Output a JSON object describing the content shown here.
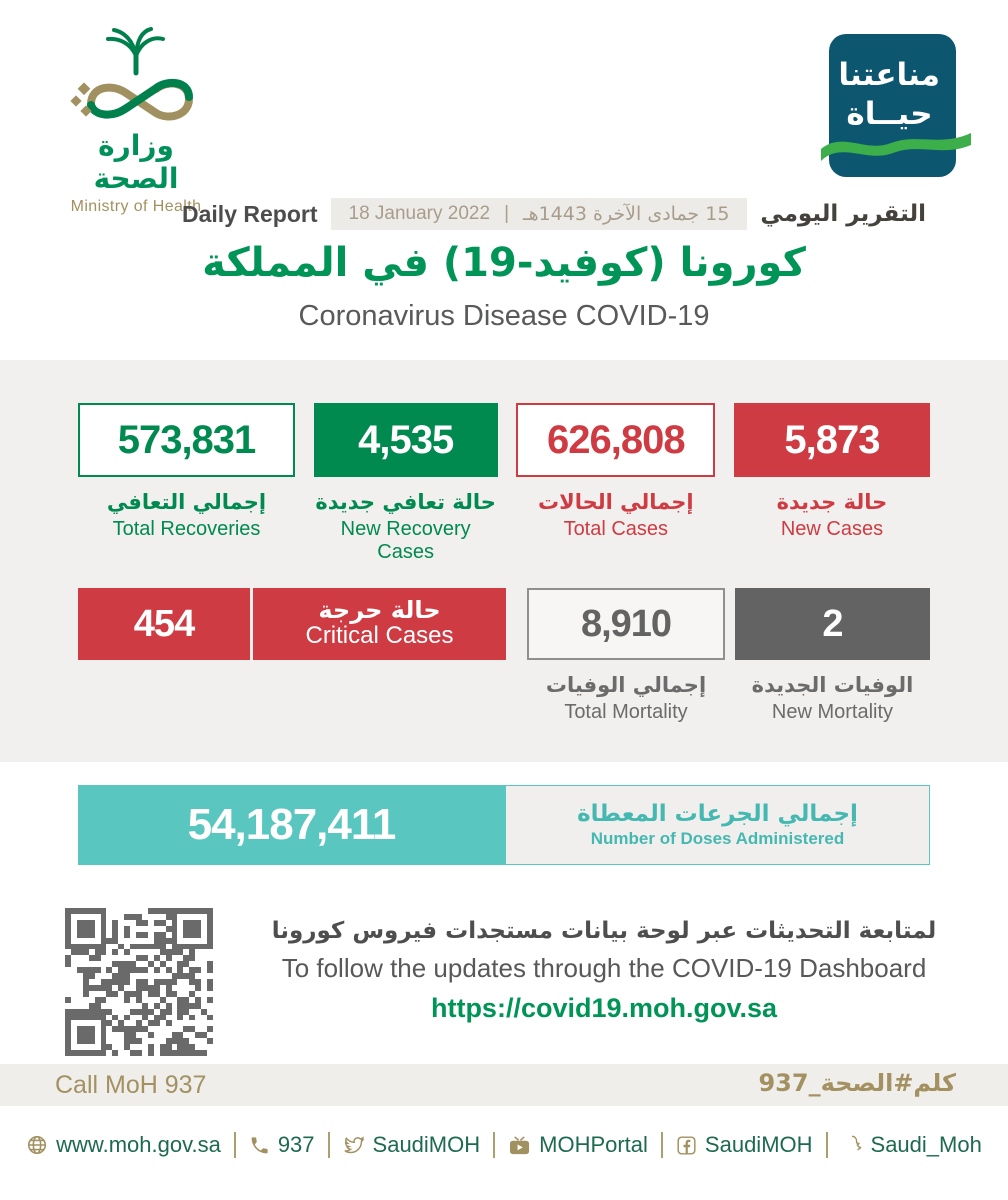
{
  "logo": {
    "arabic": "وزارة الصحة",
    "english": "Ministry of Health"
  },
  "badge": {
    "line1": "مناعتنا",
    "line2": "حيــاة"
  },
  "report_header": {
    "daily_report_en": "Daily Report",
    "date_gregorian": "18 January 2022",
    "separator": "|",
    "date_hijri": "15 جمادى الآخرة 1443هـ",
    "daily_report_ar": "التقرير اليومي"
  },
  "title": {
    "ar": "كورونا  (كوفيد-19) في المملكة",
    "en": "Coronavirus Disease COVID-19"
  },
  "stats": {
    "total_recoveries": {
      "value": "573,831",
      "label_ar": "إجمالي التعافي",
      "label_en": "Total Recoveries"
    },
    "new_recoveries": {
      "value": "4,535",
      "label_ar": "حالة تعافي جديدة",
      "label_en": "New Recovery Cases"
    },
    "total_cases": {
      "value": "626,808",
      "label_ar": "إجمالي الحالات",
      "label_en": "Total Cases"
    },
    "new_cases": {
      "value": "5,873",
      "label_ar": "حالة جديدة",
      "label_en": "New Cases"
    },
    "critical": {
      "value": "454",
      "label_ar": "حالة حرجة",
      "label_en": "Critical Cases"
    },
    "total_mortality": {
      "value": "8,910",
      "label_ar": "إجمالي الوفيات",
      "label_en": "Total Mortality"
    },
    "new_mortality": {
      "value": "2",
      "label_ar": "الوفيات الجديدة",
      "label_en": "New Mortality"
    },
    "doses": {
      "value": "54,187,411",
      "label_ar": "إجمالي الجرعات المعطاة",
      "label_en": "Number of Doses Administered"
    }
  },
  "dashboard": {
    "ar": "لمتابعة التحديثات عبر لوحة بيانات مستجدات فيروس كورونا",
    "en": "To follow the updates through the COVID-19 Dashboard",
    "url": "https://covid19.moh.gov.sa"
  },
  "call": {
    "en": "Call MoH 937",
    "ar": "كلم#الصحة_937"
  },
  "footer": {
    "items": [
      {
        "icon": "globe-icon",
        "label": "www.moh.gov.sa"
      },
      {
        "icon": "phone-icon",
        "label": "937"
      },
      {
        "icon": "twitter-icon",
        "label": "SaudiMOH"
      },
      {
        "icon": "youtube-icon",
        "label": "MOHPortal"
      },
      {
        "icon": "facebook-icon",
        "label": "SaudiMOH"
      },
      {
        "icon": "snapchat-icon",
        "label": "Saudi_Moh"
      }
    ]
  },
  "colors": {
    "green": "#008a50",
    "title_green": "#009457",
    "red": "#cf3b42",
    "dark_gray": "#636363",
    "teal": "#5ac6c0",
    "gold": "#a29160",
    "badge_bg": "#0d5670",
    "wave_green": "#3cae4a",
    "section_bg": "#f1f0ee"
  }
}
